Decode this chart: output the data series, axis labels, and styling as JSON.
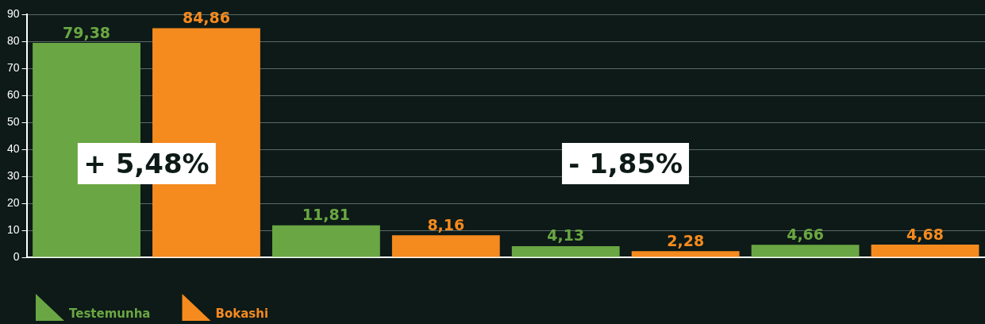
{
  "chart_data": {
    "type": "bar",
    "categories": [
      null,
      null,
      null,
      null
    ],
    "series": [
      {
        "name": "Testemunha",
        "color": "#6aa643",
        "values": [
          79.38,
          11.81,
          4.13,
          4.66
        ],
        "value_labels": [
          "79,38",
          "11,81",
          "4,13",
          "4,66"
        ]
      },
      {
        "name": "Bokashi",
        "color": "#f58a1f",
        "values": [
          84.86,
          8.16,
          2.28,
          4.68
        ],
        "value_labels": [
          "84,86",
          "8,16",
          "2,28",
          "4,68"
        ]
      }
    ],
    "ylim": [
      0,
      90
    ],
    "yticks": [
      0,
      10,
      20,
      30,
      40,
      50,
      60,
      70,
      80,
      90
    ],
    "grid": "y",
    "legend": "bottom left",
    "annotations": [
      "+ 5,48%",
      "- 1,85%"
    ]
  }
}
